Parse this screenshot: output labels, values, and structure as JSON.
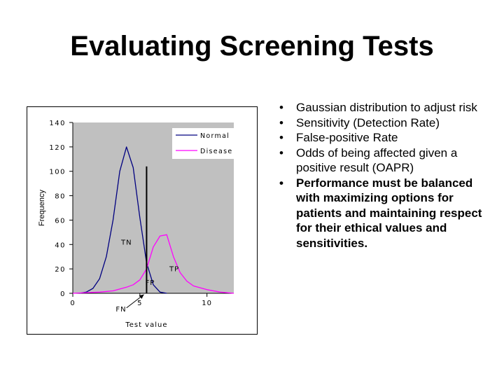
{
  "slide": {
    "title": "Evaluating Screening Tests"
  },
  "bullets": [
    {
      "text": "Gaussian distribution to adjust risk",
      "bold": false
    },
    {
      "text": "Sensitivity (Detection Rate)",
      "bold": false
    },
    {
      "text": "False-positive Rate",
      "bold": false
    },
    {
      "text": "Odds of being affected given a positive result (OAPR)",
      "bold": false
    },
    {
      "text": "Performance must be balanced with maximizing options for patients and maintaining respect for their ethical values and sensitivities.",
      "bold": true
    }
  ],
  "chart_data": {
    "type": "line",
    "title": "",
    "xlabel": "Test value",
    "ylabel": "Frequency",
    "xlim": [
      0,
      12
    ],
    "ylim": [
      0,
      140
    ],
    "x_ticks": [
      0,
      5,
      10
    ],
    "y_ticks": [
      0,
      20,
      40,
      60,
      80,
      100,
      120,
      140
    ],
    "grid": false,
    "legend_position": "top-right",
    "plot_background": "#c0c0c0",
    "series": [
      {
        "name": "Normal",
        "color": "#000080",
        "x": [
          0.5,
          1,
          1.5,
          2,
          2.5,
          3,
          3.5,
          4,
          4.5,
          5,
          5.5,
          6,
          6.5,
          7
        ],
        "y": [
          0,
          1,
          4,
          12,
          30,
          60,
          100,
          120,
          103,
          62,
          25,
          7,
          1,
          0
        ]
      },
      {
        "name": "Disease",
        "color": "#ff00ff",
        "x": [
          0,
          1,
          2,
          3,
          4,
          4.5,
          5,
          5.5,
          6,
          6.5,
          7,
          7.5,
          8,
          8.5,
          9,
          10,
          11,
          12
        ],
        "y": [
          0,
          0.5,
          1,
          2,
          5,
          7,
          11,
          20,
          38,
          47,
          48,
          30,
          17,
          10,
          6,
          3,
          1,
          0
        ]
      }
    ],
    "cutoff_x": 5.5,
    "cutoff_y_top": 104,
    "annotations": [
      {
        "text": "TN",
        "x": 3.6,
        "y": 40
      },
      {
        "text": "TP",
        "x": 7.2,
        "y": 18
      },
      {
        "text": "FP",
        "x": 5.4,
        "y": 7
      },
      {
        "text": "FN",
        "x": 3.2,
        "y": -15
      }
    ],
    "fn_arrow": {
      "from": [
        4.0,
        -12
      ],
      "to": [
        5.3,
        -1
      ]
    }
  }
}
